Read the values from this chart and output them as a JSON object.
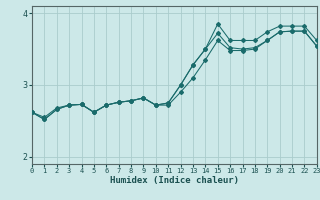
{
  "xlabel": "Humidex (Indice chaleur)",
  "bg_color": "#cce8e8",
  "grid_color": "#aacccc",
  "line_color": "#1a6b6b",
  "xlim": [
    0,
    23
  ],
  "ylim": [
    1.9,
    4.1
  ],
  "xticks": [
    0,
    1,
    2,
    3,
    4,
    5,
    6,
    7,
    8,
    9,
    10,
    11,
    12,
    13,
    14,
    15,
    16,
    17,
    18,
    19,
    20,
    21,
    22,
    23
  ],
  "yticks": [
    2,
    3,
    4
  ],
  "line1_x": [
    0,
    1,
    2,
    3,
    4,
    5,
    6,
    7,
    8,
    9,
    10,
    11,
    12,
    13,
    14,
    15,
    16,
    17,
    18,
    19,
    20,
    21,
    22,
    23
  ],
  "line1_y": [
    2.62,
    2.55,
    2.68,
    2.72,
    2.73,
    2.62,
    2.72,
    2.76,
    2.78,
    2.82,
    2.72,
    2.72,
    2.9,
    3.1,
    3.35,
    3.62,
    3.48,
    3.48,
    3.5,
    3.62,
    3.74,
    3.75,
    3.75,
    3.54
  ],
  "line2_x": [
    0,
    1,
    2,
    3,
    4,
    5,
    6,
    7,
    8,
    9,
    10,
    11,
    12,
    13,
    14,
    15,
    16,
    17,
    18,
    19,
    20,
    21,
    22,
    23
  ],
  "line2_y": [
    2.62,
    2.52,
    2.66,
    2.72,
    2.73,
    2.62,
    2.72,
    2.76,
    2.78,
    2.82,
    2.72,
    2.75,
    3.0,
    3.28,
    3.5,
    3.72,
    3.52,
    3.5,
    3.52,
    3.62,
    3.74,
    3.75,
    3.75,
    3.54
  ],
  "line3_x": [
    0,
    1,
    2,
    3,
    4,
    5,
    6,
    7,
    8,
    9,
    10,
    11,
    12,
    13,
    14,
    15,
    16,
    17,
    18,
    19,
    20,
    21,
    22,
    23
  ],
  "line3_y": [
    2.62,
    2.52,
    2.66,
    2.72,
    2.73,
    2.62,
    2.72,
    2.76,
    2.78,
    2.82,
    2.72,
    2.75,
    3.0,
    3.28,
    3.5,
    3.85,
    3.62,
    3.62,
    3.62,
    3.74,
    3.82,
    3.82,
    3.82,
    3.62
  ]
}
